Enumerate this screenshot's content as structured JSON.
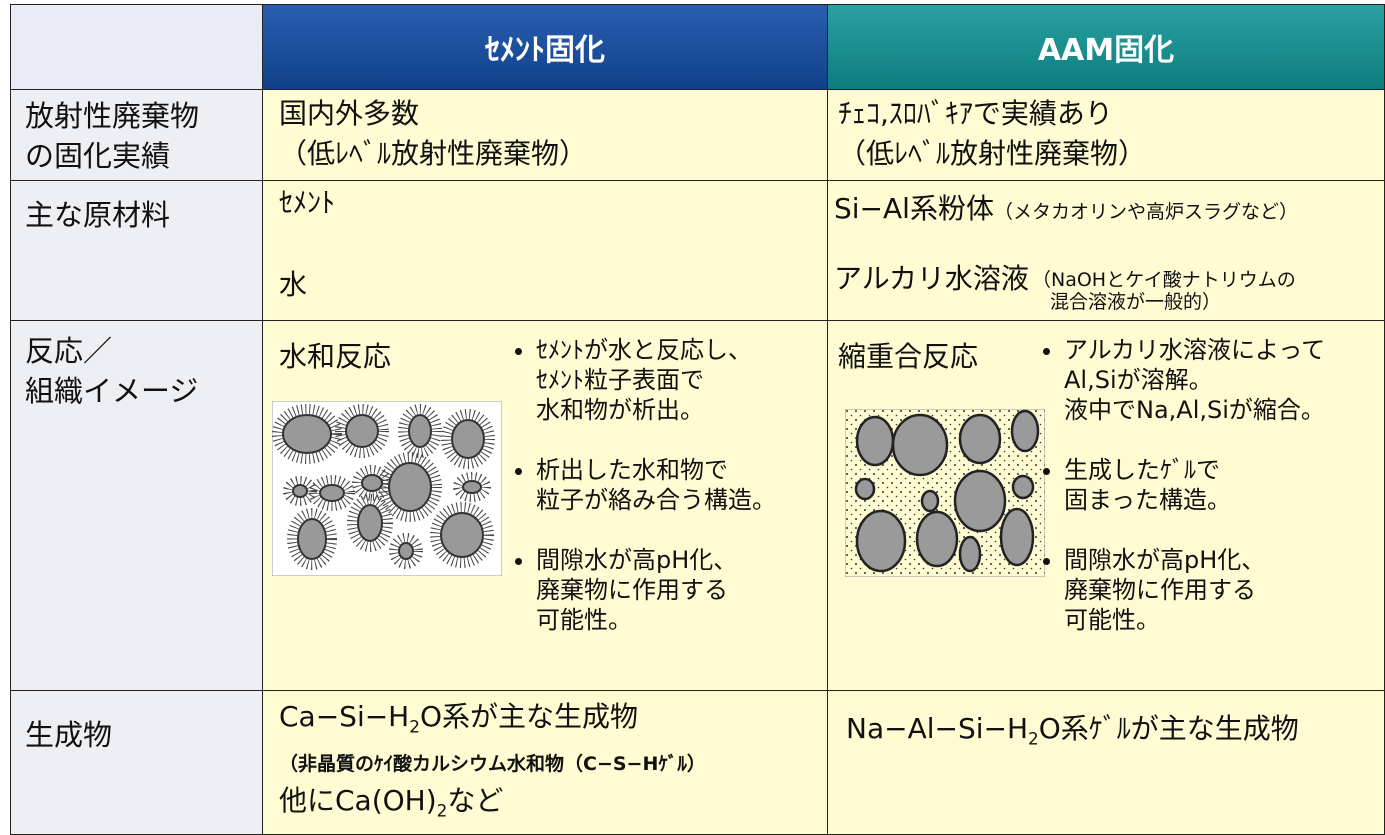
{
  "table": {
    "header": [
      "ｾﾒﾝﾄ固化",
      "AAM固化"
    ],
    "rows": [
      {
        "label": [
          "放射性廃棄物",
          "の固化実績"
        ],
        "cement": [
          "国内外多数",
          "（低ﾚﾍﾞﾙ放射性廃棄物）"
        ],
        "aam": [
          "ﾁｪｺ,ｽﾛﾊﾞｷｱで実績あり",
          "（低ﾚﾍﾞﾙ放射性廃棄物）"
        ]
      },
      {
        "label": [
          "主な原材料"
        ],
        "cement": [
          "ｾﾒﾝﾄ",
          "水"
        ],
        "aam": [
          {
            "main": "Si−Al系粉体",
            "note": [
              "（メタカオリンや高炉スラグなど）"
            ]
          },
          {
            "main": "アルカリ水溶液",
            "note": [
              "（NaOHとケイ酸ナトリウムの",
              "混合溶液が一般的）"
            ]
          }
        ]
      },
      {
        "label": [
          "反応／",
          "組織イメージ"
        ],
        "cement": {
          "title": "水和反応",
          "bullets": [
            [
              "ｾﾒﾝﾄが水と反応し、",
              "ｾﾒﾝﾄ粒子表面で",
              "水和物が析出。"
            ],
            [
              "析出した水和物で",
              "粒子が絡み合う構造。"
            ],
            [
              "間隙水が高pH化、",
              "廃棄物に作用する",
              "可能性。"
            ]
          ]
        },
        "aam": {
          "title": "縮重合反応",
          "bullets": [
            [
              "アルカリ水溶液によって",
              "Al,Siが溶解。",
              "液中でNa,Al,Siが縮合。"
            ],
            [
              "生成したｹﾞﾙで",
              "固まった構造。"
            ],
            [
              "間隙水が高pH化、",
              "廃棄物に作用する",
              "可能性。"
            ]
          ]
        }
      },
      {
        "label": [
          "生成物"
        ],
        "cement": [
          [
            "Ca−Si−H",
            "2",
            "O系が主な生成物"
          ],
          [
            "（非晶質のｹｲ酸カルシウム水和物（C−S−Hｹﾞﾙ）"
          ],
          [
            "他にCa(OH)",
            "2",
            "など"
          ]
        ],
        "aam": [
          [
            "Na−Al−Si−H",
            "2",
            "O系ｹﾞﾙが主な生成物"
          ]
        ]
      }
    ]
  }
}
